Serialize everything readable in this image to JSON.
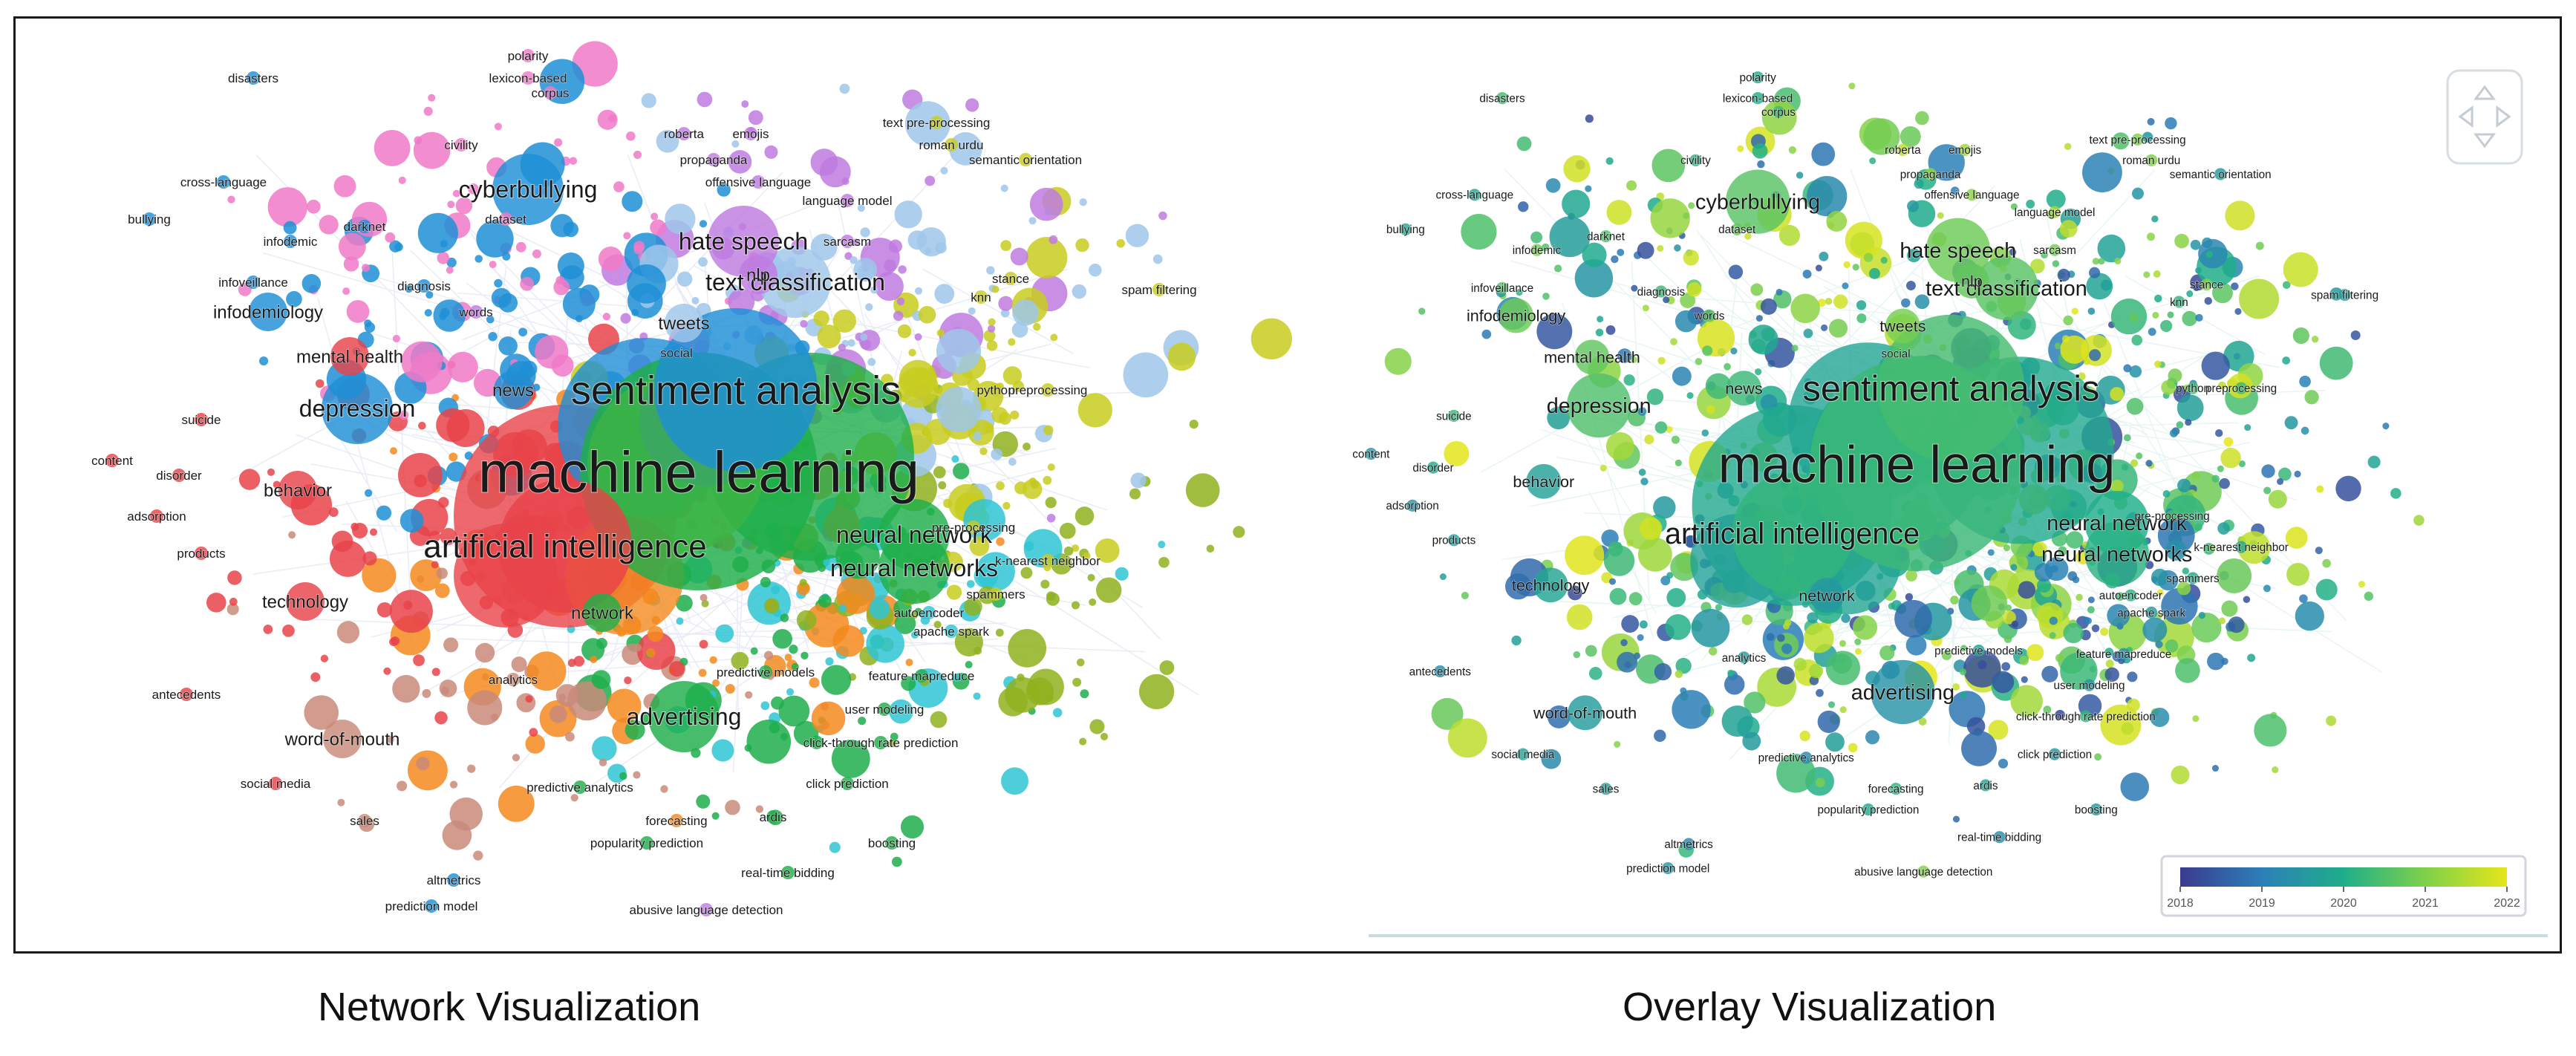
{
  "captions": {
    "network": "Network Visualization",
    "overlay": "Overlay Visualization"
  },
  "colorbar": {
    "ticks": [
      "2018",
      "2019",
      "2020",
      "2021",
      "2022"
    ],
    "range": [
      2018,
      2022
    ],
    "colors": [
      "#3b3b8f",
      "#2c7fb8",
      "#1fae8a",
      "#7fd14a",
      "#e6e61a"
    ]
  },
  "cluster_colors": {
    "red": "#e8434a",
    "green": "#1fae4b",
    "blue": "#1f8fd6",
    "yellow": "#c8cc1e",
    "purple": "#c07be0",
    "cyan": "#2fc4d4",
    "orange": "#f48a1e",
    "pink": "#f07ac8",
    "brown": "#c98a7a",
    "lightblue": "#9fc7ea",
    "olive": "#8fb21e"
  },
  "terms": [
    {
      "label": "machine learning",
      "size": "xl",
      "cluster": "green",
      "year": 2020.3
    },
    {
      "label": "sentiment analysis",
      "size": "l",
      "cluster": "blue",
      "year": 2020.4
    },
    {
      "label": "artificial intelligence",
      "size": "m",
      "cluster": "red",
      "year": 2020.2
    },
    {
      "label": "neural network",
      "size": "s",
      "cluster": "green",
      "year": 2020.0
    },
    {
      "label": "neural networks",
      "size": "s",
      "cluster": "green",
      "year": 2020.1
    },
    {
      "label": "text classification",
      "size": "s",
      "cluster": "lightblue",
      "year": 2020.6
    },
    {
      "label": "hate speech",
      "size": "s",
      "cluster": "purple",
      "year": 2020.8
    },
    {
      "label": "cyberbullying",
      "size": "s",
      "cluster": "blue",
      "year": 2020.6
    },
    {
      "label": "depression",
      "size": "s",
      "cluster": "blue",
      "year": 2020.5
    },
    {
      "label": "mental health",
      "size": "xs",
      "cluster": "red",
      "year": 2020.7
    },
    {
      "label": "advertising",
      "size": "s",
      "cluster": "green",
      "year": 2019.4
    },
    {
      "label": "technology",
      "size": "xs",
      "cluster": "red",
      "year": 2019.8
    },
    {
      "label": "behavior",
      "size": "xs",
      "cluster": "red",
      "year": 2019.7
    },
    {
      "label": "word-of-mouth",
      "size": "xs",
      "cluster": "brown",
      "year": 2019.6
    },
    {
      "label": "infodemiology",
      "size": "xs",
      "cluster": "blue",
      "year": 2020.8
    },
    {
      "label": "news",
      "size": "xs",
      "cluster": "blue",
      "year": 2020.3
    },
    {
      "label": "tweets",
      "size": "xs",
      "cluster": "lightblue",
      "year": 2020.9
    },
    {
      "label": "nlp",
      "size": "xs",
      "cluster": "purple",
      "year": 2020.7
    },
    {
      "label": "network",
      "size": "xs",
      "cluster": "green",
      "year": 2019.5
    },
    {
      "label": "analytics",
      "size": "xxs",
      "cluster": "brown",
      "year": 2019.7
    },
    {
      "label": "predictive analytics",
      "size": "xxs",
      "cluster": "green",
      "year": 2019.2
    },
    {
      "label": "click-through rate prediction",
      "size": "xxs",
      "cluster": "green",
      "year": 2020.2
    },
    {
      "label": "click prediction",
      "size": "xxs",
      "cluster": "green",
      "year": 2019.5
    },
    {
      "label": "popularity prediction",
      "size": "xxs",
      "cluster": "green",
      "year": 2019.9
    },
    {
      "label": "real-time bidding",
      "size": "xxs",
      "cluster": "green",
      "year": 2019.3
    },
    {
      "label": "abusive language detection",
      "size": "xxs",
      "cluster": "purple",
      "year": 2021.0
    },
    {
      "label": "prediction model",
      "size": "xxs",
      "cluster": "blue",
      "year": 2019.5
    },
    {
      "label": "altmetrics",
      "size": "xxs",
      "cluster": "blue",
      "year": 2019.2
    },
    {
      "label": "polarity",
      "size": "xxs",
      "cluster": "pink",
      "year": 2020.0
    },
    {
      "label": "lexicon-based",
      "size": "xxs",
      "cluster": "pink",
      "year": 2020.0
    },
    {
      "label": "corpus",
      "size": "xxs",
      "cluster": "pink",
      "year": 2020.3
    },
    {
      "label": "disasters",
      "size": "xxs",
      "cluster": "blue",
      "year": 2020.4
    },
    {
      "label": "roberta",
      "size": "xxs",
      "cluster": "purple",
      "year": 2021.6
    },
    {
      "label": "emojis",
      "size": "xxs",
      "cluster": "purple",
      "year": 2021.3
    },
    {
      "label": "text pre-processing",
      "size": "xxs",
      "cluster": "yellow",
      "year": 2021.0
    },
    {
      "label": "propaganda",
      "size": "xxs",
      "cluster": "purple",
      "year": 2021.2
    },
    {
      "label": "semantic orientation",
      "size": "xxs",
      "cluster": "yellow",
      "year": 2019.6
    },
    {
      "label": "roman urdu",
      "size": "xxs",
      "cluster": "yellow",
      "year": 2021.0
    },
    {
      "label": "offensive language",
      "size": "xxs",
      "cluster": "purple",
      "year": 2021.1
    },
    {
      "label": "language model",
      "size": "xxs",
      "cluster": "purple",
      "year": 2021.4
    },
    {
      "label": "sarcasm",
      "size": "xxs",
      "cluster": "purple",
      "year": 2020.9
    },
    {
      "label": "stance",
      "size": "xxs",
      "cluster": "yellow",
      "year": 2021.0
    },
    {
      "label": "spam filtering",
      "size": "xxs",
      "cluster": "yellow",
      "year": 2019.7
    },
    {
      "label": "knn",
      "size": "xxs",
      "cluster": "yellow",
      "year": 2020.2
    },
    {
      "label": "python",
      "size": "xxs",
      "cluster": "yellow",
      "year": 2020.4
    },
    {
      "label": "preprocessing",
      "size": "xxs",
      "cluster": "yellow",
      "year": 2020.3
    },
    {
      "label": "pre-processing",
      "size": "xxs",
      "cluster": "yellow",
      "year": 2020.4
    },
    {
      "label": "k-nearest neighbor",
      "size": "xxs",
      "cluster": "yellow",
      "year": 2019.8
    },
    {
      "label": "spammers",
      "size": "xxs",
      "cluster": "yellow",
      "year": 2019.9
    },
    {
      "label": "apache spark",
      "size": "xxs",
      "cluster": "cyan",
      "year": 2019.5
    },
    {
      "label": "autoencoder",
      "size": "xxs",
      "cluster": "cyan",
      "year": 2020.1
    },
    {
      "label": "predictive models",
      "size": "xxs",
      "cluster": "green",
      "year": 2019.7
    },
    {
      "label": "feature mapreduce",
      "size": "xxs",
      "cluster": "green",
      "year": 2019.3
    },
    {
      "label": "user modeling",
      "size": "xxs",
      "cluster": "green",
      "year": 2019.5
    },
    {
      "label": "forecasting",
      "size": "xxs",
      "cluster": "orange",
      "year": 2020.2
    },
    {
      "label": "ardis",
      "size": "xxs",
      "cluster": "green",
      "year": 2019.8
    },
    {
      "label": "boosting",
      "size": "xxs",
      "cluster": "green",
      "year": 2019.6
    },
    {
      "label": "bullying",
      "size": "xxs",
      "cluster": "blue",
      "year": 2019.9
    },
    {
      "label": "cross-language",
      "size": "xxs",
      "cluster": "blue",
      "year": 2019.8
    },
    {
      "label": "civility",
      "size": "xxs",
      "cluster": "pink",
      "year": 2020.1
    },
    {
      "label": "infodemic",
      "size": "xxs",
      "cluster": "blue",
      "year": 2020.9
    },
    {
      "label": "diagnosis",
      "size": "xxs",
      "cluster": "blue",
      "year": 2020.3
    },
    {
      "label": "infoveillance",
      "size": "xxs",
      "cluster": "blue",
      "year": 2020.6
    },
    {
      "label": "suicide",
      "size": "xxs",
      "cluster": "red",
      "year": 2020.3
    },
    {
      "label": "content",
      "size": "xxs",
      "cluster": "red",
      "year": 2019.5
    },
    {
      "label": "disorder",
      "size": "xxs",
      "cluster": "red",
      "year": 2019.9
    },
    {
      "label": "adsorption",
      "size": "xxs",
      "cluster": "red",
      "year": 2019.4
    },
    {
      "label": "products",
      "size": "xxs",
      "cluster": "red",
      "year": 2019.6
    },
    {
      "label": "antecedents",
      "size": "xxs",
      "cluster": "red",
      "year": 2019.3
    },
    {
      "label": "social media",
      "size": "xxs",
      "cluster": "red",
      "year": 2019.8
    },
    {
      "label": "sales",
      "size": "xxs",
      "cluster": "brown",
      "year": 2019.7
    },
    {
      "label": "darknet",
      "size": "xxs",
      "cluster": "blue",
      "year": 2020.5
    },
    {
      "label": "dataset",
      "size": "xxs",
      "cluster": "pink",
      "year": 2020.7
    },
    {
      "label": "words",
      "size": "xxs",
      "cluster": "purple",
      "year": 2020.6
    },
    {
      "label": "social",
      "size": "xxs",
      "cluster": "blue",
      "year": 2020.5
    }
  ]
}
